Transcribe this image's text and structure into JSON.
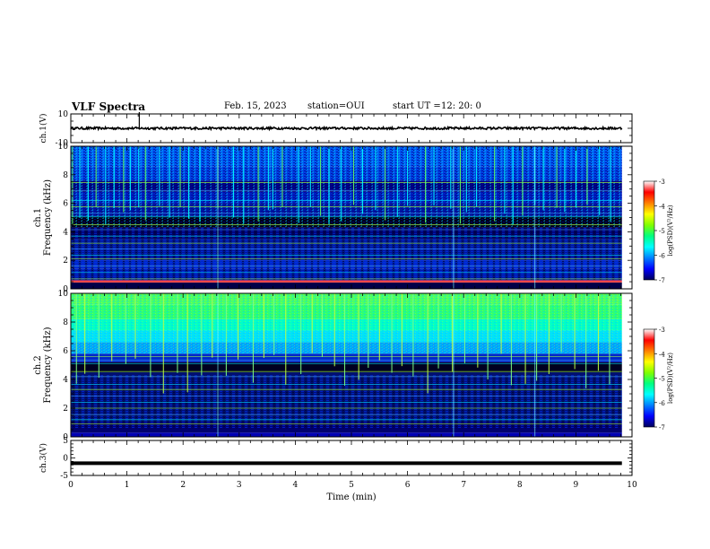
{
  "header": {
    "title": "VLF Spectra",
    "date": "Feb. 15, 2023",
    "station": "station=OUI",
    "start_label": "start UT =",
    "start_time": "12: 20: 0"
  },
  "colorbar": {
    "label": "log(PSD)(V²/Hz)",
    "ticks": [
      "-3",
      "-4",
      "-5",
      "-6",
      "-7"
    ],
    "range": [
      -7,
      -3
    ],
    "colormap": [
      "#00005a",
      "#0000ff",
      "#0080ff",
      "#00ffff",
      "#00ff80",
      "#80ff00",
      "#ffff00",
      "#ff8000",
      "#ff0000",
      "#ffffff"
    ]
  },
  "chart_data": [
    {
      "type": "line",
      "panel": "ch1",
      "ylabel": "ch.1(V)",
      "yticks": [
        "10",
        "-10"
      ],
      "ylim": [
        -10,
        10
      ],
      "xlim": [
        0,
        10
      ],
      "baseline": 0,
      "noise_amplitude": 0.8,
      "spike": {
        "x": 1.22,
        "y": 10
      }
    },
    {
      "type": "heatmap",
      "panel": "ch1-spectrogram",
      "ylabel_channel": "ch.1",
      "ylabel": "Frequency (kHz)",
      "yticks": [
        "0",
        "2",
        "4",
        "6",
        "8",
        "10"
      ],
      "ylim": [
        0,
        10
      ],
      "xlim": [
        0,
        10
      ],
      "sferics_min": [
        0.03,
        0.16,
        0.31,
        0.45,
        0.62,
        0.77,
        0.94,
        1.06,
        1.21,
        1.33,
        1.58,
        1.76,
        1.95,
        2.1,
        2.3,
        2.62,
        2.9,
        3.08,
        3.34,
        3.52,
        3.6,
        3.77,
        4.06,
        4.27,
        4.45,
        4.6,
        4.82,
        5.04,
        5.2,
        5.43,
        5.6,
        5.82,
        6.0,
        6.32,
        6.47,
        6.77,
        6.94,
        7.05,
        7.23,
        7.55,
        7.73,
        7.88,
        8.05,
        8.27,
        8.42,
        8.66,
        8.8,
        9.0,
        9.2,
        9.42,
        9.62
      ],
      "tonal_lines_khz": [
        0.7,
        1.15,
        1.6,
        2.1,
        2.35,
        2.8,
        3.2,
        3.7,
        4.15,
        4.5,
        5.05,
        5.3,
        5.75,
        6.2,
        6.9,
        7.45
      ]
    },
    {
      "type": "heatmap",
      "panel": "ch2-spectrogram",
      "ylabel_channel": "ch.2",
      "ylabel": "Frequency (kHz)",
      "yticks": [
        "0",
        "2",
        "4",
        "6",
        "8",
        "10"
      ],
      "ylim": [
        0,
        10
      ],
      "xlim": [
        0,
        10
      ],
      "sferics_min": [
        0.1,
        0.25,
        0.5,
        0.73,
        0.98,
        1.15,
        1.42,
        1.65,
        1.9,
        2.08,
        2.33,
        2.52,
        2.77,
        2.98,
        3.25,
        3.44,
        3.62,
        3.83,
        4.1,
        4.3,
        4.48,
        4.7,
        4.88,
        5.13,
        5.3,
        5.5,
        5.72,
        5.9,
        6.1,
        6.36,
        6.55,
        6.8,
        7.02,
        7.25,
        7.43,
        7.67,
        7.85,
        8.1,
        8.3,
        8.52,
        8.74,
        8.98,
        9.18,
        9.4,
        9.6
      ],
      "tonal_lines_khz": [
        0.9,
        1.2,
        1.55,
        2.0,
        2.4,
        2.85,
        3.3,
        3.65,
        4.2,
        4.55,
        5.1,
        5.35,
        5.6
      ]
    },
    {
      "type": "line",
      "panel": "ch3",
      "ylabel": "ch.3(V)",
      "yticks": [
        "5",
        "0",
        "-5"
      ],
      "ylim": [
        -5,
        5
      ],
      "xlim": [
        0,
        10
      ],
      "baseline": -1.5,
      "xlabel": "Time (min)",
      "xticks": [
        "0",
        "1",
        "2",
        "3",
        "4",
        "5",
        "6",
        "7",
        "8",
        "9",
        "10"
      ]
    }
  ]
}
